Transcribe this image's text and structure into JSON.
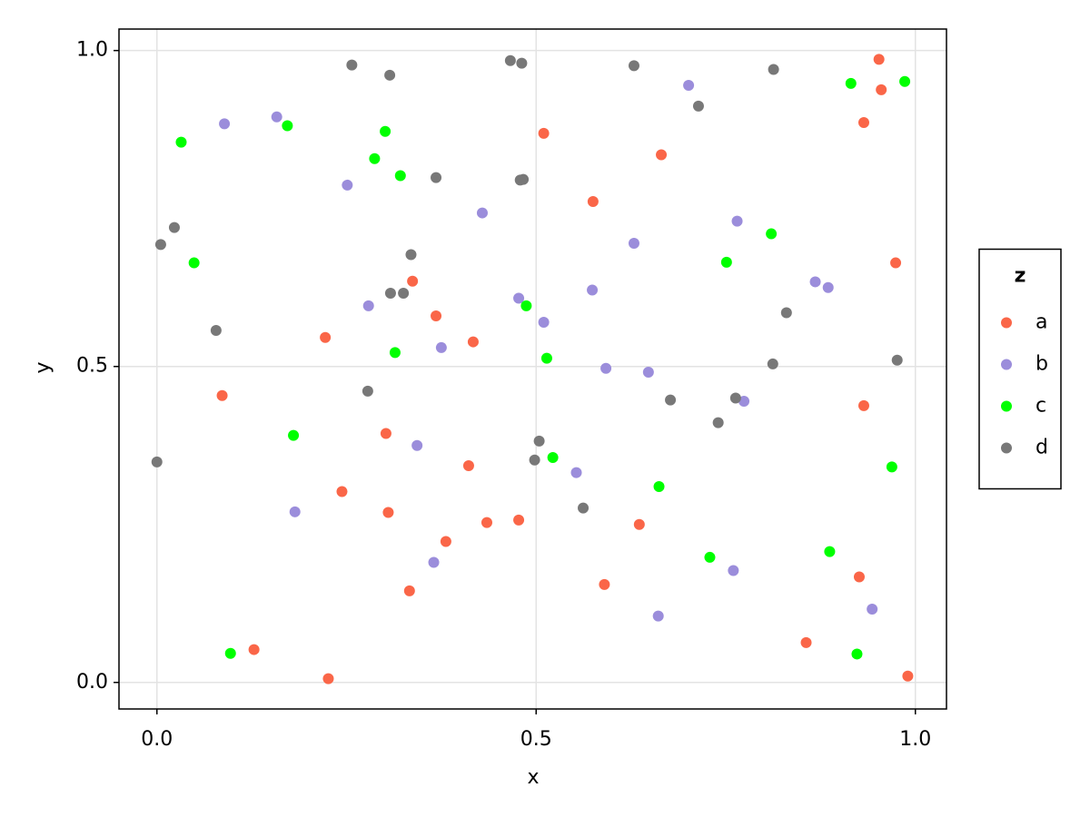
{
  "chart_data": {
    "type": "scatter",
    "x_label": "x",
    "y_label": "y",
    "xlim": [
      -0.05,
      1.041
    ],
    "ylim": [
      -0.042,
      1.034
    ],
    "xticks": [
      {
        "value": 0,
        "label": "0.0"
      },
      0.5,
      {
        "value": 1,
        "label": "1.0"
      }
    ],
    "yticks": [
      {
        "value": 0,
        "label": "0.0"
      },
      0.5,
      {
        "value": 1,
        "label": "1.0"
      }
    ],
    "grid": true,
    "legend_title": "z",
    "legend_position": "right",
    "series": [
      {
        "name": "a",
        "color": "#fa6648",
        "x": [
          0.952,
          0.955,
          0.932,
          0.51,
          0.665,
          0.575,
          0.974,
          0.337,
          0.368,
          0.222,
          0.417,
          0.086,
          0.932,
          0.302,
          0.411,
          0.244,
          0.305,
          0.435,
          0.477,
          0.636,
          0.381,
          0.926,
          0.59,
          0.333,
          0.128,
          0.856,
          0.226,
          0.99
        ],
        "y": [
          0.986,
          0.938,
          0.886,
          0.869,
          0.835,
          0.761,
          0.664,
          0.635,
          0.58,
          0.546,
          0.539,
          0.454,
          0.438,
          0.394,
          0.343,
          0.302,
          0.269,
          0.253,
          0.257,
          0.25,
          0.223,
          0.167,
          0.155,
          0.145,
          0.052,
          0.063,
          0.006,
          0.01
        ]
      },
      {
        "name": "b",
        "color": "#9b8ddb",
        "x": [
          0.158,
          0.089,
          0.701,
          0.251,
          0.429,
          0.629,
          0.765,
          0.868,
          0.885,
          0.574,
          0.279,
          0.477,
          0.51,
          0.375,
          0.592,
          0.648,
          0.774,
          0.343,
          0.553,
          0.182,
          0.365,
          0.76,
          0.943,
          0.661
        ],
        "y": [
          0.895,
          0.884,
          0.945,
          0.787,
          0.743,
          0.695,
          0.73,
          0.634,
          0.625,
          0.621,
          0.596,
          0.608,
          0.57,
          0.53,
          0.497,
          0.491,
          0.445,
          0.375,
          0.332,
          0.27,
          0.19,
          0.177,
          0.116,
          0.105
        ]
      },
      {
        "name": "c",
        "color": "#00ff00",
        "x": [
          0.032,
          0.172,
          0.301,
          0.287,
          0.321,
          0.049,
          0.81,
          0.751,
          0.915,
          0.986,
          0.487,
          0.314,
          0.514,
          0.18,
          0.522,
          0.662,
          0.969,
          0.729,
          0.887,
          0.097,
          0.923
        ],
        "y": [
          0.855,
          0.881,
          0.872,
          0.829,
          0.802,
          0.664,
          0.71,
          0.665,
          0.948,
          0.951,
          0.596,
          0.522,
          0.513,
          0.391,
          0.356,
          0.31,
          0.341,
          0.198,
          0.207,
          0.046,
          0.045
        ]
      },
      {
        "name": "d",
        "color": "#787878",
        "x": [
          0.257,
          0.307,
          0.466,
          0.481,
          0.629,
          0.813,
          0.714,
          0.368,
          0.479,
          0.483,
          0.023,
          0.005,
          0.335,
          0.308,
          0.325,
          0.83,
          0.078,
          0.812,
          0.976,
          0.278,
          0.677,
          0.763,
          0.74,
          0.504,
          0.498,
          0.562,
          0.0
        ],
        "y": [
          0.977,
          0.961,
          0.984,
          0.98,
          0.976,
          0.97,
          0.912,
          0.799,
          0.795,
          0.796,
          0.72,
          0.693,
          0.677,
          0.616,
          0.616,
          0.585,
          0.557,
          0.504,
          0.51,
          0.461,
          0.447,
          0.45,
          0.411,
          0.382,
          0.352,
          0.276,
          0.349
        ]
      }
    ]
  }
}
